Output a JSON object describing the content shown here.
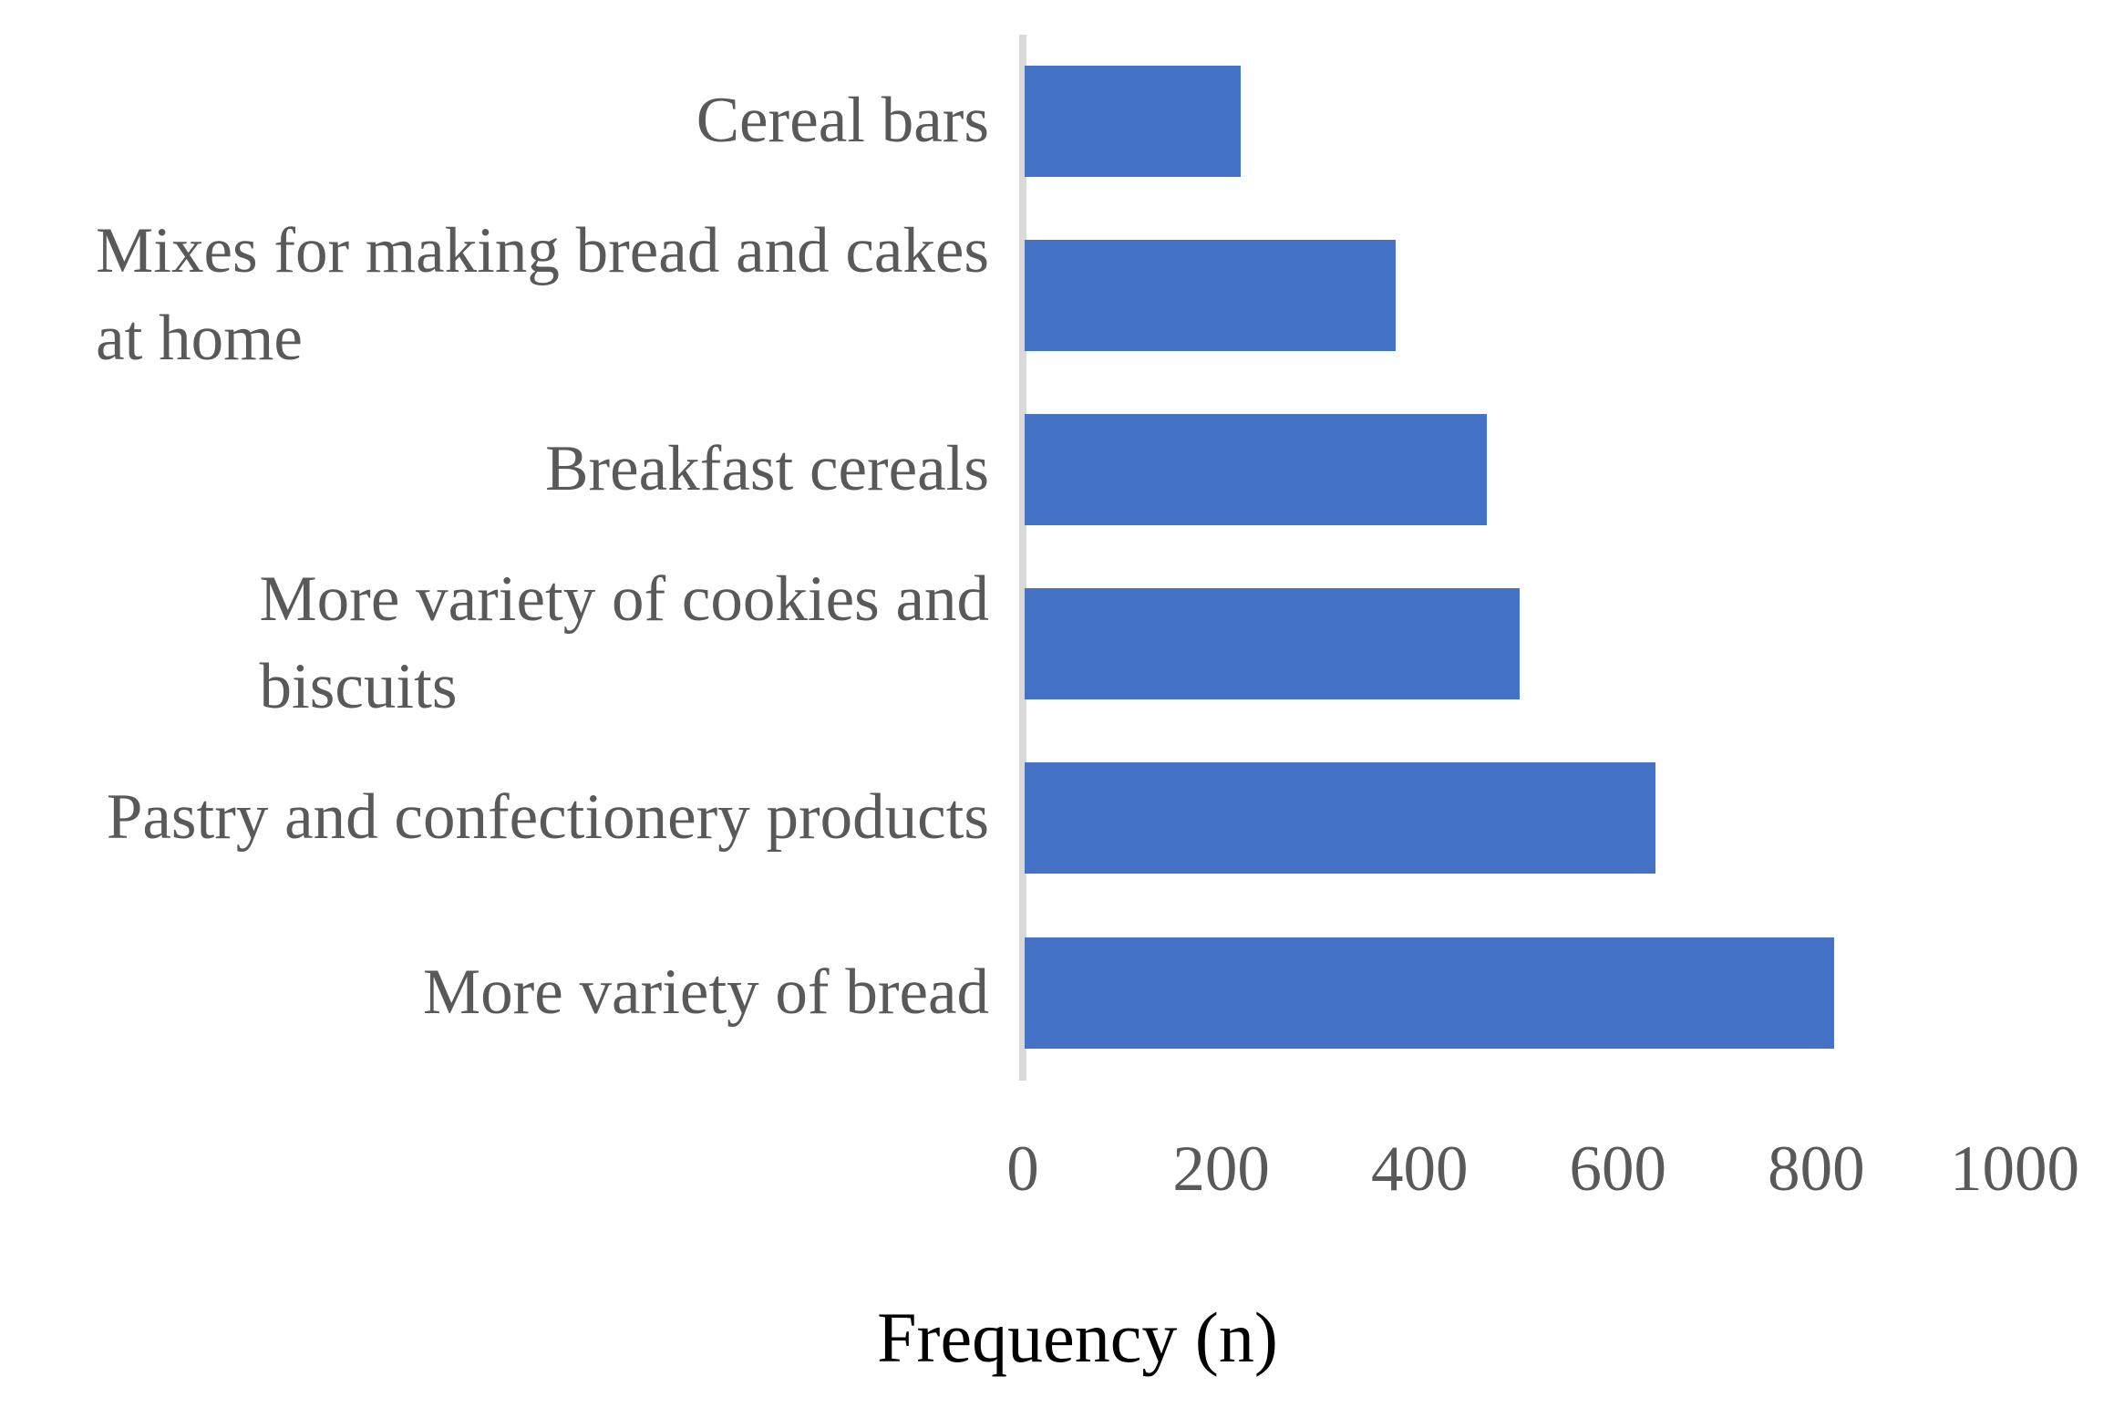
{
  "chart_data": {
    "type": "bar",
    "orientation": "horizontal",
    "order_note": "categories listed top to bottom as displayed",
    "categories": [
      "Cereal bars",
      "Mixes for making bread and cakes\nat home",
      "Breakfast cereals",
      "More variety of cookies and\nbiscuits",
      "Pastry and confectionery products",
      "More variety of bread"
    ],
    "values": [
      218,
      374,
      466,
      499,
      636,
      816
    ],
    "title": "",
    "xlabel": "Frequency (n)",
    "ylabel": "",
    "xlim": [
      0,
      1000
    ],
    "xticks": [
      0,
      200,
      400,
      600,
      800,
      1000
    ],
    "grid": false,
    "legend": false,
    "colors": {
      "bar": "#4472C4",
      "axis_line": "#D9D9D9",
      "tick_label": "#595959",
      "category_label": "#595959",
      "xlabel": "#000000",
      "background": "#FFFFFF"
    }
  }
}
